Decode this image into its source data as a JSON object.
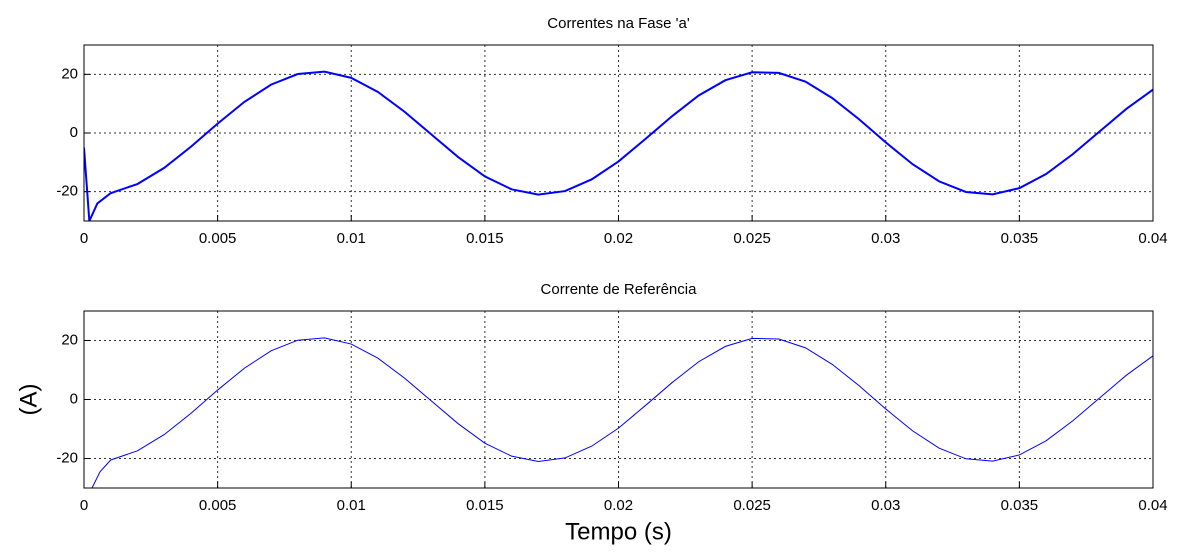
{
  "chart_data": [
    {
      "type": "line",
      "title": "Correntes na Fase 'a'",
      "x": [
        0,
        0.0002,
        0.0005,
        0.001,
        0.002,
        0.003,
        0.004,
        0.005,
        0.006,
        0.007,
        0.008,
        0.009,
        0.01,
        0.011,
        0.012,
        0.013,
        0.014,
        0.015,
        0.016,
        0.017,
        0.018,
        0.019,
        0.02,
        0.021,
        0.022,
        0.023,
        0.024,
        0.025,
        0.026,
        0.027,
        0.028,
        0.029,
        0.03,
        0.031,
        0.032,
        0.033,
        0.034,
        0.035,
        0.036,
        0.037,
        0.038,
        0.039,
        0.04
      ],
      "series": [
        {
          "color": "#0000ff",
          "values": [
            -5,
            -30,
            -24,
            -20.5,
            -17.4,
            -11.9,
            -4.7,
            3.2,
            10.6,
            16.5,
            20.1,
            20.9,
            18.8,
            14.0,
            7.2,
            -0.5,
            -8.2,
            -14.8,
            -19.2,
            -21.0,
            -19.8,
            -15.8,
            -9.7,
            -2.1,
            5.7,
            12.8,
            18.0,
            20.7,
            20.5,
            17.5,
            11.9,
            4.7,
            -3.2,
            -10.6,
            -16.5,
            -20.1,
            -20.9,
            -18.8,
            -14.0,
            -7.2,
            0.5,
            8.2,
            14.8
          ]
        }
      ],
      "xlim": [
        0,
        0.04
      ],
      "xticks": [
        0,
        0.005,
        0.01,
        0.015,
        0.02,
        0.025,
        0.03,
        0.035,
        0.04
      ],
      "ylim": [
        -30,
        30
      ],
      "yticks": [
        -20,
        0,
        20
      ],
      "grid": true
    },
    {
      "type": "line",
      "title": "Corrente de Referência",
      "xlabel": "Tempo (s)",
      "ylabel": "(A)",
      "x": [
        0.0003,
        0.0006,
        0.001,
        0.002,
        0.003,
        0.004,
        0.005,
        0.006,
        0.007,
        0.008,
        0.009,
        0.01,
        0.011,
        0.012,
        0.013,
        0.014,
        0.015,
        0.016,
        0.017,
        0.018,
        0.019,
        0.02,
        0.021,
        0.022,
        0.023,
        0.024,
        0.025,
        0.026,
        0.027,
        0.028,
        0.029,
        0.03,
        0.031,
        0.032,
        0.033,
        0.034,
        0.035,
        0.036,
        0.037,
        0.038,
        0.039,
        0.04
      ],
      "series": [
        {
          "color": "#0000ff",
          "values": [
            -30,
            -24.5,
            -20.5,
            -17.4,
            -11.9,
            -4.7,
            3.2,
            10.6,
            16.5,
            20.1,
            20.9,
            18.8,
            14.0,
            7.2,
            -0.5,
            -8.2,
            -14.8,
            -19.2,
            -21.0,
            -19.8,
            -15.8,
            -9.7,
            -2.1,
            5.7,
            12.8,
            18.0,
            20.7,
            20.5,
            17.5,
            11.9,
            4.7,
            -3.2,
            -10.6,
            -16.5,
            -20.1,
            -20.9,
            -18.8,
            -14.0,
            -7.2,
            0.5,
            8.2,
            14.8
          ]
        }
      ],
      "xlim": [
        0,
        0.04
      ],
      "xticks": [
        0,
        0.005,
        0.01,
        0.015,
        0.02,
        0.025,
        0.03,
        0.035,
        0.04
      ],
      "ylim": [
        -30,
        30
      ],
      "yticks": [
        -20,
        0,
        20
      ],
      "grid": true
    }
  ]
}
